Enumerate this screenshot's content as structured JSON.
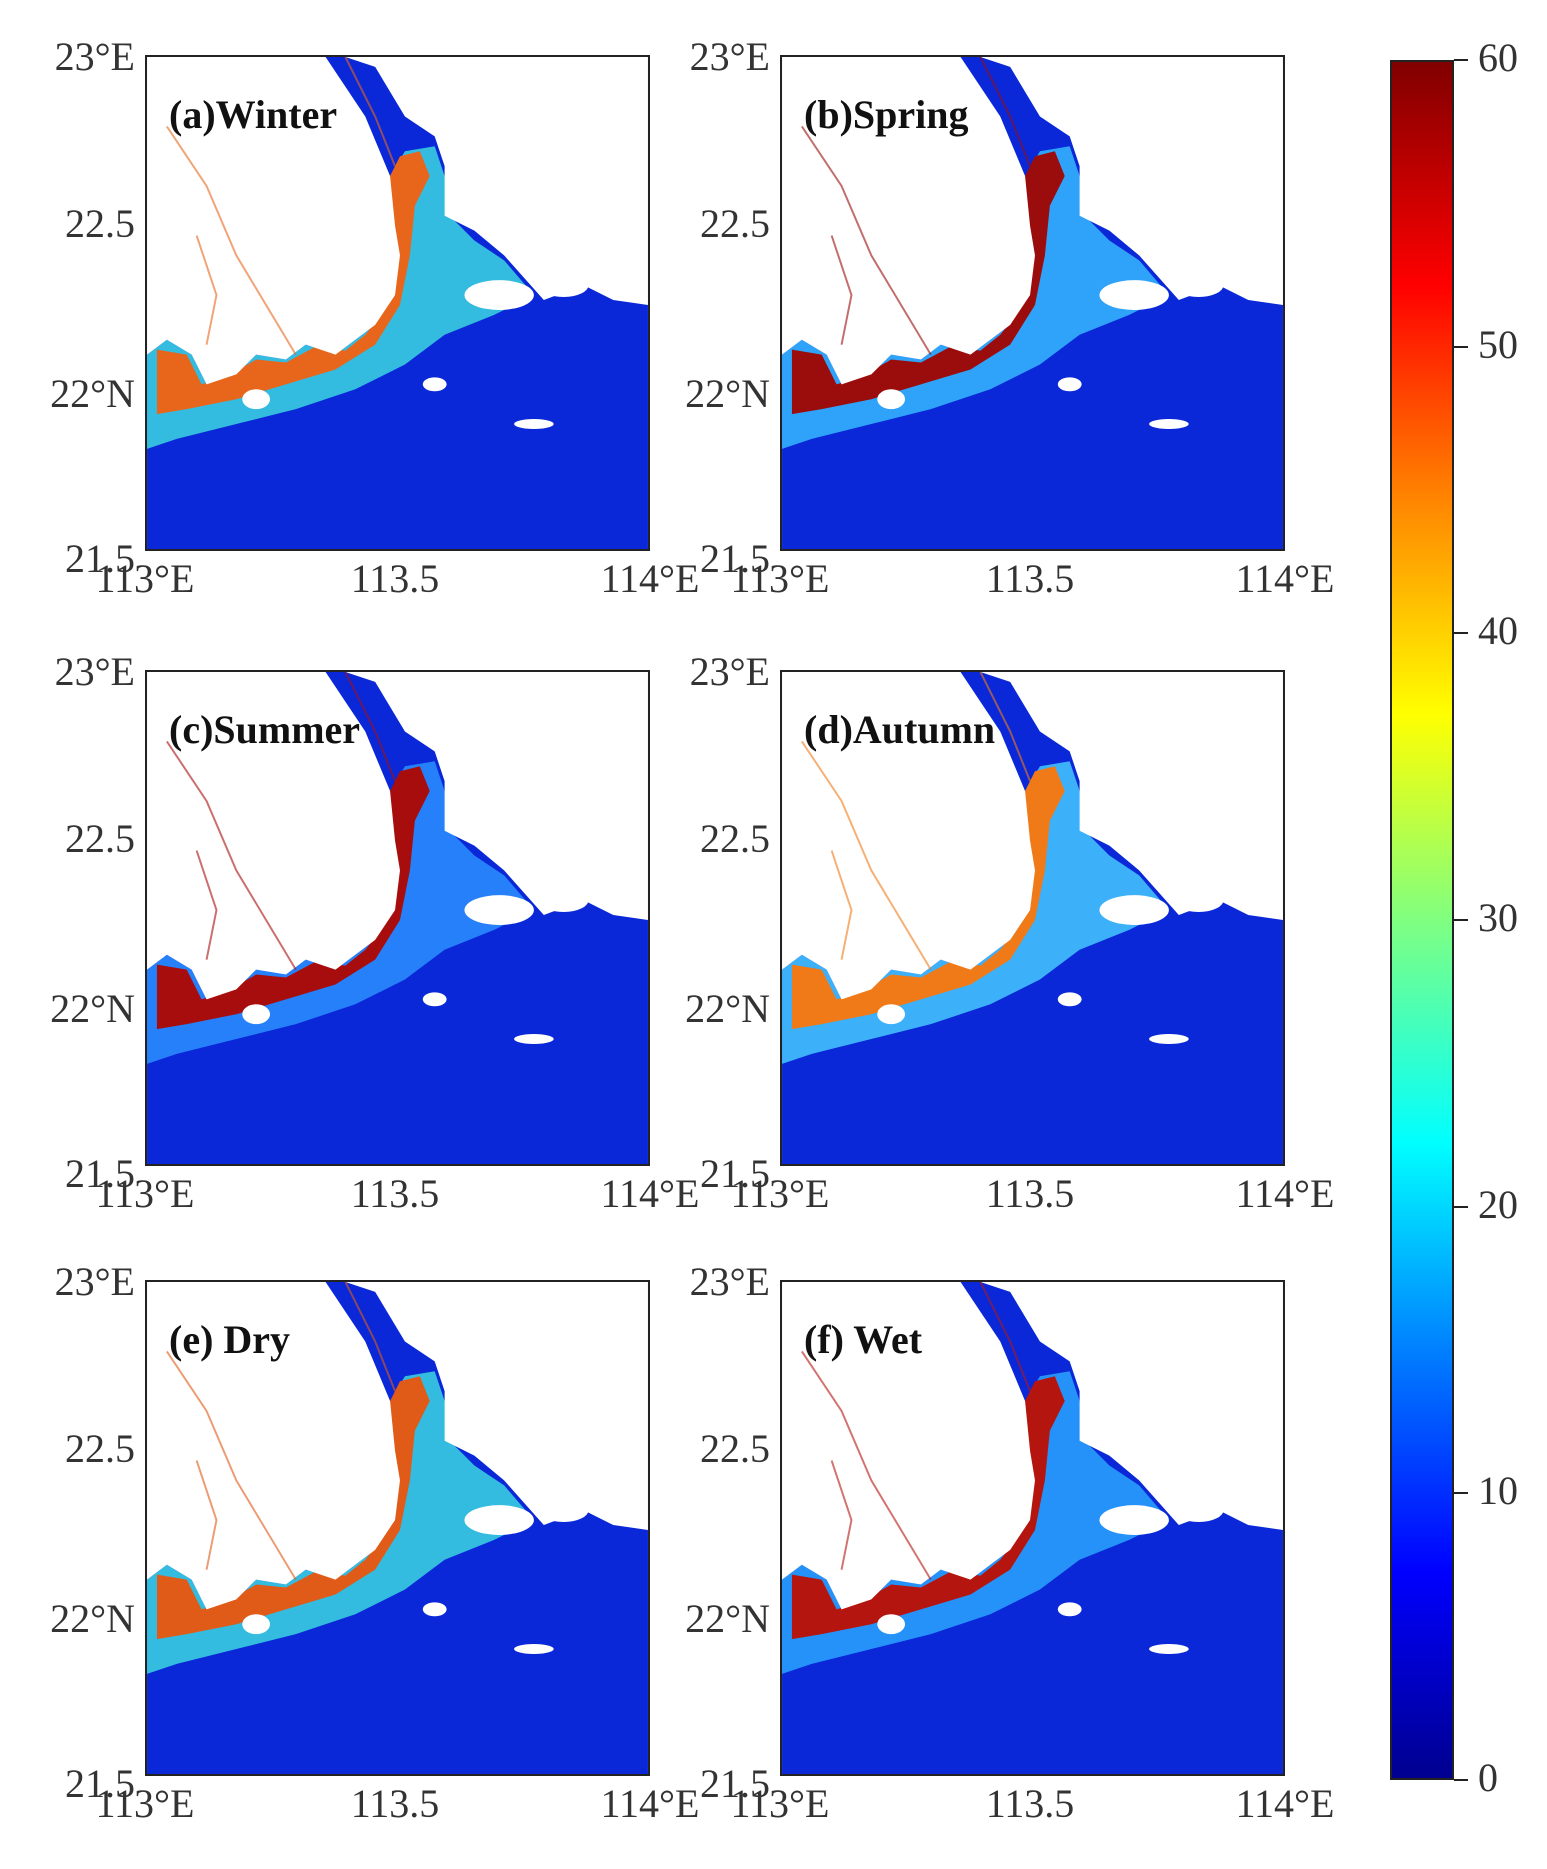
{
  "panels": [
    {
      "label": "(a)Winter",
      "shallow_color": "#3bd6e0",
      "estuary_color": "#e8661c"
    },
    {
      "label": "(b)Spring",
      "shallow_color": "#36b8ff",
      "estuary_color": "#9b0c0c"
    },
    {
      "label": "(c)Summer",
      "shallow_color": "#2a8fff",
      "estuary_color": "#a80d0d"
    },
    {
      "label": "(d)Autumn",
      "shallow_color": "#45c8ff",
      "estuary_color": "#f07a18"
    },
    {
      "label": "(e) Dry",
      "shallow_color": "#3bd6e0",
      "estuary_color": "#e05a18"
    },
    {
      "label": "(f) Wet",
      "shallow_color": "#2aa4ff",
      "estuary_color": "#b5150f"
    }
  ],
  "axes": {
    "y_ticks": [
      "23°E",
      "22.5",
      "22°N",
      "21.5"
    ],
    "x_ticks": [
      "113°E",
      "113.5",
      "114°E"
    ]
  },
  "colorbar": {
    "ticks": [
      "60",
      "50",
      "40",
      "30",
      "20",
      "10",
      "0"
    ],
    "range": [
      0,
      60
    ]
  },
  "colors": {
    "deep_water": "#0a28d8",
    "land": "#ffffff"
  }
}
